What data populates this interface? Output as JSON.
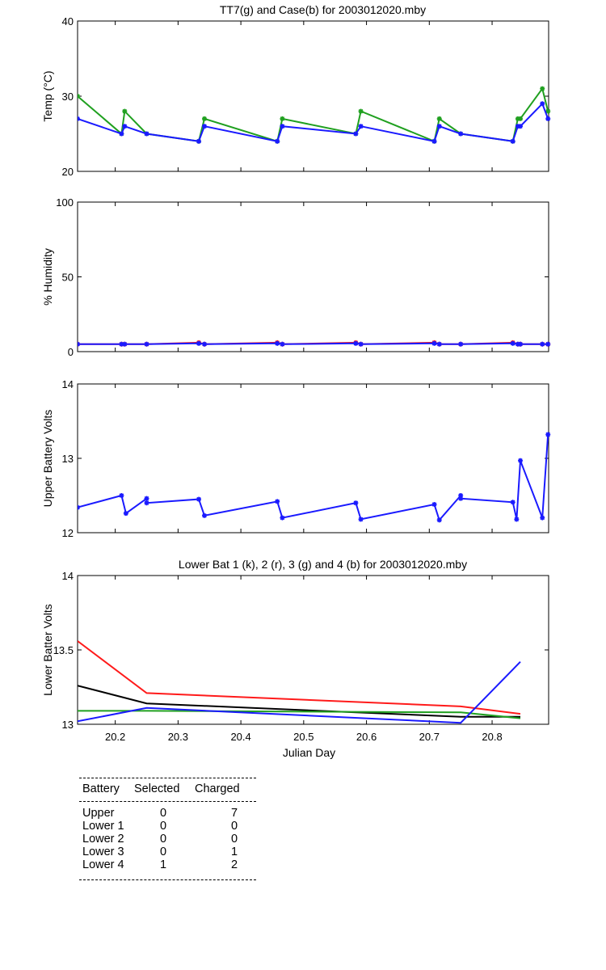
{
  "chart_data": [
    {
      "type": "line",
      "title": "TT7(g) and Case(b) for 2003012020.mby",
      "xlabel": "",
      "ylabel": "Temp  (°C)",
      "xlim": [
        20.14,
        20.89
      ],
      "ylim": [
        20,
        40
      ],
      "yticks": [
        20,
        30,
        40
      ],
      "grid": false,
      "series": [
        {
          "name": "TT7",
          "color": "#20a020",
          "marker": "asterisk",
          "x": [
            20.14,
            20.21,
            20.215,
            20.25,
            20.333,
            20.342,
            20.458,
            20.466,
            20.583,
            20.591,
            20.708,
            20.716,
            20.75,
            20.833,
            20.841,
            20.845,
            20.88,
            20.889
          ],
          "y": [
            30,
            25,
            28,
            25,
            24,
            27,
            24,
            27,
            25,
            28,
            24,
            27,
            25,
            24,
            27,
            27,
            31,
            28
          ]
        },
        {
          "name": "Case",
          "color": "#1a1aff",
          "marker": "asterisk",
          "x": [
            20.14,
            20.21,
            20.215,
            20.25,
            20.333,
            20.342,
            20.458,
            20.466,
            20.583,
            20.591,
            20.708,
            20.716,
            20.75,
            20.833,
            20.841,
            20.845,
            20.88,
            20.889
          ],
          "y": [
            27,
            25,
            26,
            25,
            24,
            26,
            24,
            26,
            25,
            26,
            24,
            26,
            25,
            24,
            26,
            26,
            29,
            27
          ]
        }
      ]
    },
    {
      "type": "line",
      "title": "",
      "xlabel": "",
      "ylabel": "% Humidity",
      "xlim": [
        20.14,
        20.89
      ],
      "ylim": [
        0,
        100
      ],
      "yticks": [
        0,
        50,
        100
      ],
      "grid": false,
      "series": [
        {
          "color": "#ff1a1a",
          "marker": "asterisk",
          "x": [
            20.14,
            20.21,
            20.215,
            20.25,
            20.333,
            20.342,
            20.458,
            20.466,
            20.583,
            20.591,
            20.708,
            20.716,
            20.75,
            20.833,
            20.841,
            20.845,
            20.88,
            20.889
          ],
          "y": [
            5,
            5,
            5,
            5,
            6,
            5,
            6,
            5,
            6,
            5,
            6,
            5,
            5,
            6,
            5,
            5,
            5,
            5
          ]
        },
        {
          "color": "#1a1aff",
          "marker": "asterisk",
          "x": [
            20.14,
            20.21,
            20.215,
            20.25,
            20.333,
            20.342,
            20.458,
            20.466,
            20.583,
            20.591,
            20.708,
            20.716,
            20.75,
            20.833,
            20.841,
            20.845,
            20.88,
            20.889
          ],
          "y": [
            5,
            5,
            5,
            5,
            5.5,
            5,
            5.5,
            5,
            5.5,
            5,
            5.5,
            5,
            5,
            5.5,
            5,
            5,
            5,
            5
          ]
        }
      ]
    },
    {
      "type": "line",
      "title": "",
      "xlabel": "",
      "ylabel": "Upper Battery Volts",
      "xlim": [
        20.14,
        20.89
      ],
      "ylim": [
        12,
        14
      ],
      "yticks": [
        12,
        13,
        14
      ],
      "grid": false,
      "series": [
        {
          "color": "#1a1aff",
          "marker": "asterisk",
          "x": [
            20.14,
            20.21,
            20.217,
            20.25,
            20.25,
            20.333,
            20.342,
            20.458,
            20.466,
            20.583,
            20.591,
            20.708,
            20.716,
            20.75,
            20.75,
            20.833,
            20.839,
            20.845,
            20.88,
            20.889
          ],
          "y": [
            12.34,
            12.5,
            12.26,
            12.46,
            12.4,
            12.45,
            12.23,
            12.42,
            12.2,
            12.4,
            12.18,
            12.38,
            12.17,
            12.5,
            12.46,
            12.41,
            12.18,
            12.97,
            12.2,
            13.32
          ]
        }
      ]
    },
    {
      "type": "line",
      "title": "Lower Bat 1 (k), 2 (r), 3 (g) and 4 (b) for 2003012020.mby",
      "xlabel": "Julian Day",
      "ylabel": "Lower Batter Volts",
      "xlim": [
        20.14,
        20.89
      ],
      "ylim": [
        13,
        14
      ],
      "yticks": [
        13,
        13.5,
        14
      ],
      "xticks": [
        20.2,
        20.3,
        20.4,
        20.5,
        20.6,
        20.7,
        20.8
      ],
      "grid": false,
      "series": [
        {
          "color": "#000000",
          "x": [
            20.14,
            20.25,
            20.75,
            20.845
          ],
          "y": [
            13.26,
            13.14,
            13.05,
            13.05
          ]
        },
        {
          "color": "#ff1a1a",
          "x": [
            20.14,
            20.25,
            20.75,
            20.845
          ],
          "y": [
            13.56,
            13.21,
            13.12,
            13.07
          ]
        },
        {
          "color": "#20a020",
          "x": [
            20.14,
            20.25,
            20.75,
            20.845
          ],
          "y": [
            13.09,
            13.09,
            13.08,
            13.04
          ]
        },
        {
          "color": "#1a1aff",
          "x": [
            20.14,
            20.25,
            20.75,
            20.845
          ],
          "y": [
            13.02,
            13.11,
            13.01,
            13.42
          ]
        }
      ]
    }
  ],
  "summary_table": {
    "headers": [
      "Battery",
      "Selected",
      "Charged"
    ],
    "rows": [
      {
        "battery": "Upper",
        "selected": "0",
        "charged": "7"
      },
      {
        "battery": "Lower 1",
        "selected": "0",
        "charged": "0"
      },
      {
        "battery": "Lower 2",
        "selected": "0",
        "charged": "0"
      },
      {
        "battery": "Lower 3",
        "selected": "0",
        "charged": "1"
      },
      {
        "battery": "Lower 4",
        "selected": "1",
        "charged": "2"
      }
    ]
  }
}
